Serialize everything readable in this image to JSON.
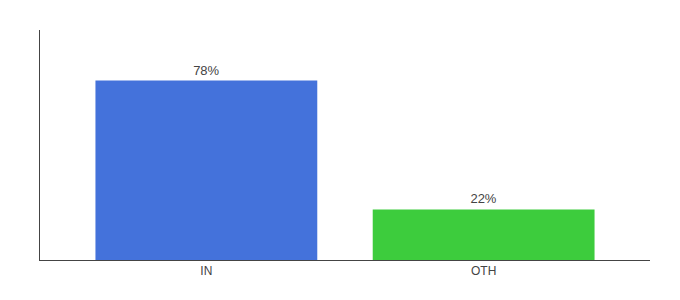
{
  "chart_data": {
    "type": "bar",
    "categories": [
      "IN",
      "OTH"
    ],
    "values": [
      78,
      22
    ],
    "value_labels": [
      "78%",
      "22%"
    ],
    "colors": [
      "#4472db",
      "#3dcc3d"
    ],
    "ylim": [
      0,
      100
    ],
    "grid": false,
    "data_labels": true,
    "tick_labels": "x"
  }
}
